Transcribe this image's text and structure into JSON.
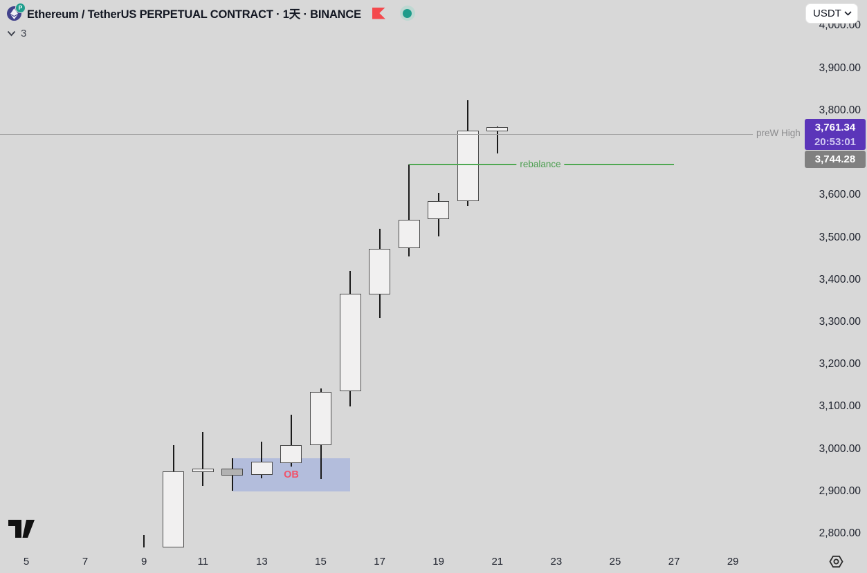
{
  "header": {
    "title": "Ethereum / TetherUS PERPETUAL CONTRACT · 1天 · BINANCE",
    "eth_badge": "P",
    "indicator_count": "3",
    "flag_color": "#f4494d",
    "status_color": "#1e9c8b"
  },
  "toolbar": {
    "currency_button": "USDT"
  },
  "price_badges": {
    "current": {
      "price": "3,761.34",
      "countdown": "20:53:01",
      "bg": "#5b35b9"
    },
    "prew_high": {
      "price": "3,744.28",
      "bg": "#808080"
    }
  },
  "chart_data": {
    "type": "candlestick",
    "title": "Ethereum / TetherUS PERPETUAL CONTRACT",
    "timeframe": "1天 (1 day)",
    "exchange": "BINANCE",
    "y_axis": {
      "unit": "USDT",
      "tick_step": 100,
      "ylim": [
        2760,
        4010
      ]
    },
    "x_axis": {
      "unit": "day of month",
      "xlim": [
        4,
        30
      ]
    },
    "price_axis_labels": [
      {
        "text": "4,000.00",
        "value": 4000
      },
      {
        "text": "3,900.00",
        "value": 3900
      },
      {
        "text": "3,800.00",
        "value": 3800
      },
      {
        "text": "3,600.00",
        "value": 3600
      },
      {
        "text": "3,500.00",
        "value": 3500
      },
      {
        "text": "3,400.00",
        "value": 3400
      },
      {
        "text": "3,300.00",
        "value": 3300
      },
      {
        "text": "3,200.00",
        "value": 3200
      },
      {
        "text": "3,100.00",
        "value": 3100
      },
      {
        "text": "3,000.00",
        "value": 3000
      },
      {
        "text": "2,900.00",
        "value": 2900
      },
      {
        "text": "2,800.00",
        "value": 2800
      }
    ],
    "time_axis_labels": [
      {
        "text": "5",
        "day": 5
      },
      {
        "text": "7",
        "day": 7
      },
      {
        "text": "9",
        "day": 9
      },
      {
        "text": "11",
        "day": 11
      },
      {
        "text": "13",
        "day": 13
      },
      {
        "text": "15",
        "day": 15
      },
      {
        "text": "17",
        "day": 17
      },
      {
        "text": "19",
        "day": 19
      },
      {
        "text": "21",
        "day": 21
      },
      {
        "text": "23",
        "day": 23
      },
      {
        "text": "25",
        "day": 25
      },
      {
        "text": "27",
        "day": 27
      },
      {
        "text": "29",
        "day": 29
      }
    ],
    "candles": [
      {
        "day": 9,
        "open": 2785,
        "high": 2797,
        "low": 2768,
        "close": 2785,
        "direction": "doji"
      },
      {
        "day": 10,
        "open": 2767,
        "high": 3009,
        "low": 2767,
        "close": 2947,
        "direction": "up"
      },
      {
        "day": 11,
        "open": 2946,
        "high": 3040,
        "low": 2913,
        "close": 2954,
        "direction": "up"
      },
      {
        "day": 12,
        "open": 2954,
        "high": 2978,
        "low": 2901,
        "close": 2937,
        "direction": "down"
      },
      {
        "day": 13,
        "open": 2939,
        "high": 3017,
        "low": 2931,
        "close": 2970,
        "direction": "up"
      },
      {
        "day": 14,
        "open": 2967,
        "high": 3081,
        "low": 2959,
        "close": 3009,
        "direction": "up"
      },
      {
        "day": 15,
        "open": 3009,
        "high": 3143,
        "low": 2929,
        "close": 3135,
        "direction": "up"
      },
      {
        "day": 16,
        "open": 3136,
        "high": 3421,
        "low": 3101,
        "close": 3367,
        "direction": "up"
      },
      {
        "day": 17,
        "open": 3366,
        "high": 3521,
        "low": 3310,
        "close": 3473,
        "direction": "up"
      },
      {
        "day": 18,
        "open": 3475,
        "high": 3673,
        "low": 3455,
        "close": 3542,
        "direction": "up"
      },
      {
        "day": 19,
        "open": 3544,
        "high": 3605,
        "low": 3503,
        "close": 3586,
        "direction": "up"
      },
      {
        "day": 20,
        "open": 3586,
        "high": 3825,
        "low": 3575,
        "close": 3753,
        "direction": "up"
      },
      {
        "day": 21,
        "open": 3751,
        "high": 3763,
        "low": 3699,
        "close": 3761.34,
        "direction": "up"
      }
    ],
    "overlays": {
      "prew_high_line": {
        "label": "preW High",
        "price": 3744.28,
        "color": "#a3a3a3"
      },
      "rebalance_line": {
        "label": "rebalance",
        "price": 3672,
        "from_day": 18,
        "to_day": 27,
        "color": "#4fa852"
      },
      "order_block": {
        "label": "OB",
        "from_day": 12,
        "to_day": 16,
        "price_top": 2978,
        "price_bottom": 2900,
        "fill": "#b3bddc",
        "label_color": "#f0536b"
      }
    },
    "current_price": 3761.34
  }
}
